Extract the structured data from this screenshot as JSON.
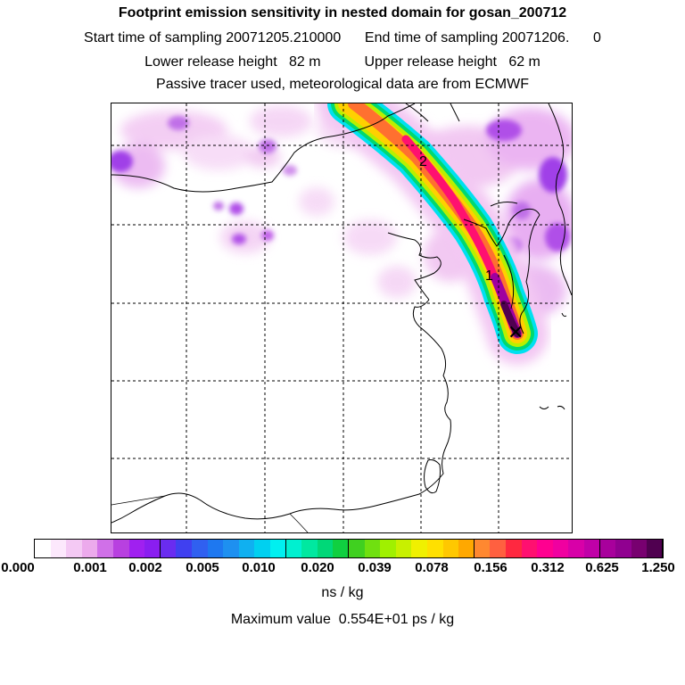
{
  "titles": {
    "line1": "Footprint emission sensitivity in nested domain for gosan_200712",
    "line2": "Start time of sampling 20071205.210000      End time of sampling 20071206.      0",
    "line3": "Lower release height   82 m           Upper release height   62 m",
    "line4": "Passive tracer used, meteorological data are from ECMWF"
  },
  "map": {
    "labels": {
      "mark_1": "1",
      "mark_2": "2",
      "receptor": "✕"
    }
  },
  "colorbar": {
    "tick_labels": [
      "0.000",
      "0.001",
      "0.002",
      "0.005",
      "0.010",
      "0.020",
      "0.039",
      "0.078",
      "0.156",
      "0.312",
      "0.625",
      "1.250"
    ],
    "colors": [
      "#ffffff",
      "#fce8fc",
      "#f4c9f4",
      "#ecaaec",
      "#d070e8",
      "#b840e0",
      "#a020f0",
      "#8a1ef0",
      "#6a2cf0",
      "#4040f0",
      "#3060f0",
      "#1e78f0",
      "#1e90f0",
      "#10b0f0",
      "#00d0f0",
      "#00f0f0",
      "#00f0d0",
      "#00e8a0",
      "#00d878",
      "#10d040",
      "#40d020",
      "#70e010",
      "#a0f000",
      "#c8f000",
      "#f0f000",
      "#ffe000",
      "#ffc800",
      "#ffa800",
      "#ff8830",
      "#ff6040",
      "#ff2840",
      "#ff1070",
      "#ff0090",
      "#f000a0",
      "#d800a8",
      "#c000a8",
      "#a8009c",
      "#900090",
      "#780070",
      "#500050"
    ]
  },
  "units_label": "ns / kg",
  "max_value_label": "Maximum value  0.554E+01 ps / kg"
}
